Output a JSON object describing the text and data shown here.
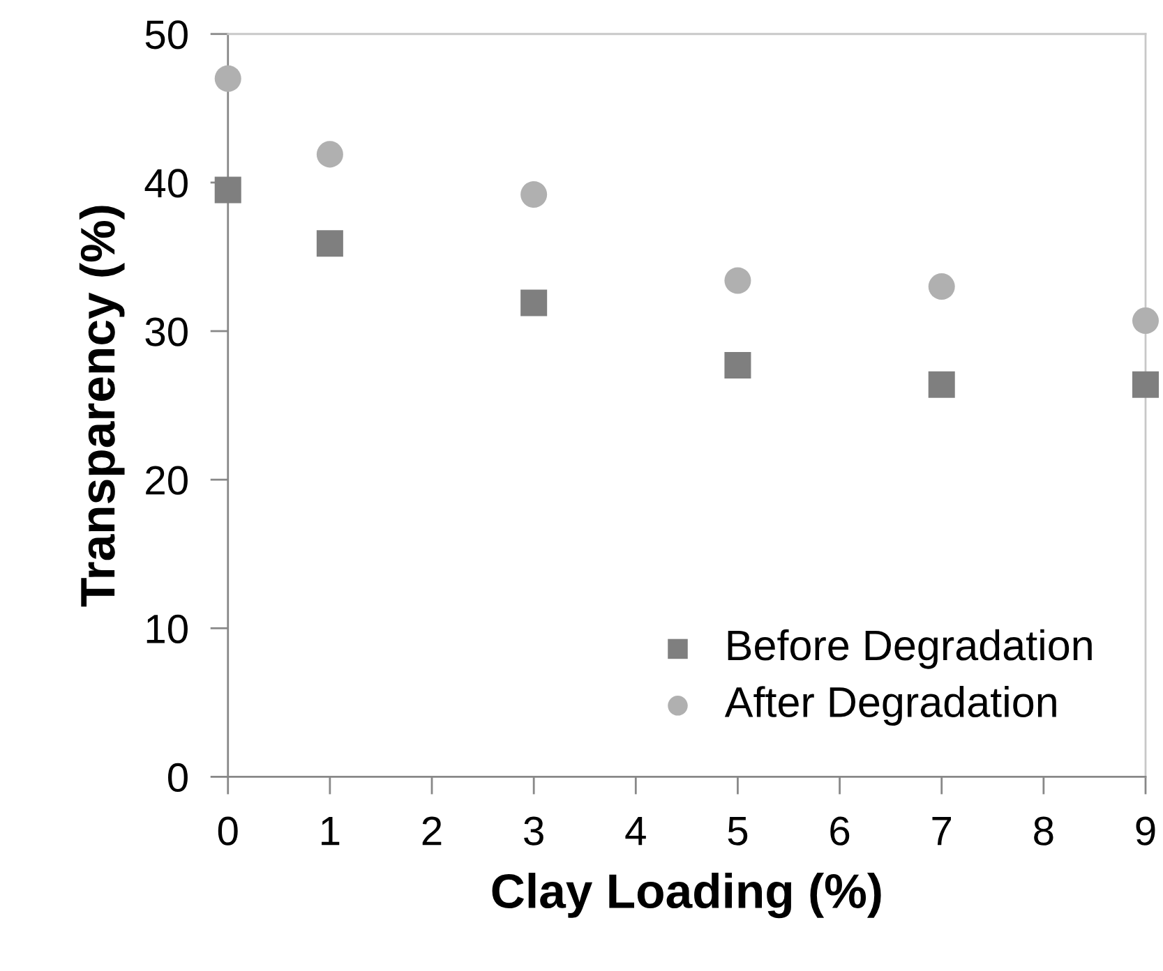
{
  "chart_data": {
    "type": "scatter",
    "xlabel": "Clay Loading (%)",
    "ylabel": "Transparency (%)",
    "xlim": [
      0,
      9
    ],
    "xticks": [
      0,
      1,
      2,
      3,
      4,
      5,
      6,
      7,
      8,
      9
    ],
    "ylim": [
      0,
      50
    ],
    "yticks": [
      0,
      10,
      20,
      30,
      40,
      50
    ],
    "grid": false,
    "legend": "bottom right",
    "series": [
      {
        "name": "Before Degradation",
        "color": "#7f7f7f",
        "marker": "square",
        "x": [
          0,
          1,
          3,
          5,
          7,
          9
        ],
        "values": [
          39.5,
          35.9,
          31.9,
          27.7,
          26.4,
          26.4
        ]
      },
      {
        "name": "After Degradation",
        "color": "#b0b0b0",
        "marker": "circle",
        "x": [
          0,
          1,
          3,
          5,
          7,
          9
        ],
        "values": [
          47.0,
          41.9,
          39.2,
          33.4,
          33.0,
          30.7
        ]
      }
    ]
  }
}
